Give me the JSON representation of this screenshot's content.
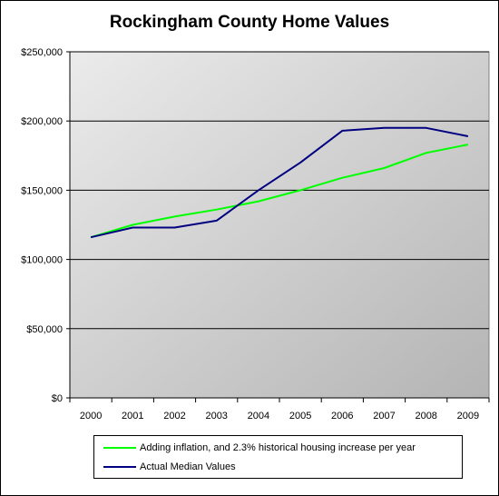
{
  "chart_data": {
    "type": "line",
    "title": "Rockingham County Home Values",
    "xlabel": "",
    "ylabel": "",
    "categories": [
      "2000",
      "2001",
      "2002",
      "2003",
      "2004",
      "2005",
      "2006",
      "2007",
      "2008",
      "2009"
    ],
    "yticks": [
      "$0",
      "$50,000",
      "$100,000",
      "$150,000",
      "$200,000",
      "$250,000"
    ],
    "ylim": [
      0,
      250000
    ],
    "grid": true,
    "legend_position": "bottom",
    "series": [
      {
        "name": "Adding inflation, and 2.3% historical housing increase per year",
        "color": "#00ff00",
        "values": [
          116000,
          125000,
          131000,
          136000,
          142000,
          150000,
          159000,
          166000,
          177000,
          183000
        ]
      },
      {
        "name": "Actual Median Values",
        "color": "#000080",
        "values": [
          116000,
          123000,
          123000,
          128000,
          150000,
          170000,
          193000,
          195000,
          195000,
          189000
        ]
      }
    ]
  }
}
